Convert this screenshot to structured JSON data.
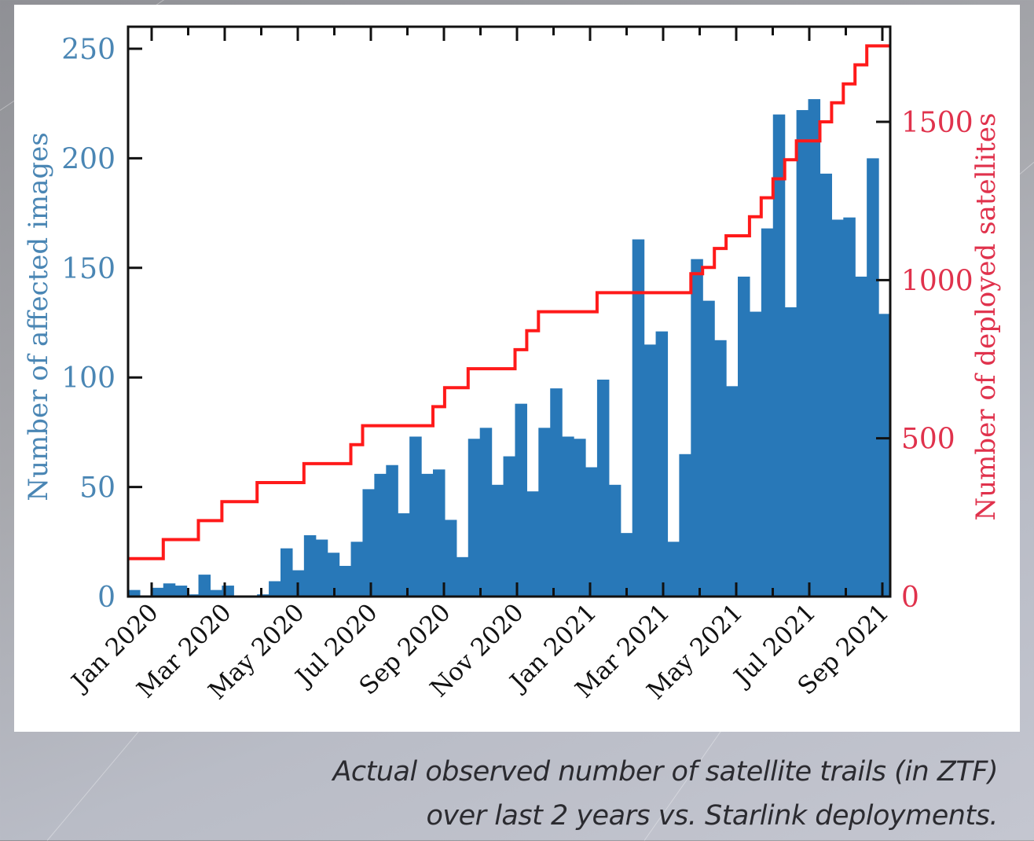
{
  "chart_data": {
    "type": "bar",
    "title": "",
    "xlabel": "",
    "ylabel": "Number of affected images",
    "y2label": "Number of deployed satellites",
    "ylim": [
      0,
      260
    ],
    "y2lim": [
      0,
      1790
    ],
    "yticks": [
      "0",
      "50",
      "100",
      "150",
      "200",
      "250"
    ],
    "y2ticks": [
      "0",
      "500",
      "1000",
      "1500"
    ],
    "xtick_labels": [
      "Jan 2020",
      "Mar 2020",
      "May 2020",
      "Jul 2020",
      "Sep 2020",
      "Nov 2020",
      "Jan 2021",
      "Mar 2021",
      "May 2021",
      "Jul 2021",
      "Sep 2021"
    ],
    "grid": false,
    "series": [
      {
        "name": "Number of affected images",
        "kind": "bar",
        "axis": "left",
        "color": "#2878b8",
        "values": [
          3,
          0,
          4,
          6,
          5,
          1,
          10,
          3,
          5,
          0,
          0,
          1,
          7,
          22,
          12,
          28,
          26,
          20,
          14,
          25,
          49,
          56,
          60,
          38,
          73,
          56,
          58,
          35,
          18,
          72,
          77,
          51,
          64,
          88,
          48,
          77,
          95,
          73,
          72,
          59,
          99,
          51,
          29,
          163,
          115,
          121,
          25,
          65,
          154,
          135,
          117,
          96,
          146,
          130,
          168,
          220,
          132,
          222,
          227,
          193,
          172,
          173,
          146,
          200,
          129
        ]
      },
      {
        "name": "Number of deployed satellites",
        "kind": "step",
        "axis": "right",
        "color": "#ff1a1a",
        "values": [
          120,
          120,
          120,
          180,
          180,
          180,
          240,
          240,
          300,
          300,
          300,
          360,
          360,
          360,
          360,
          420,
          420,
          420,
          420,
          480,
          540,
          540,
          540,
          540,
          540,
          540,
          600,
          660,
          660,
          720,
          720,
          720,
          720,
          780,
          840,
          900,
          900,
          900,
          900,
          900,
          960,
          960,
          960,
          960,
          960,
          960,
          960,
          960,
          1020,
          1040,
          1100,
          1140,
          1140,
          1200,
          1260,
          1320,
          1380,
          1440,
          1440,
          1500,
          1560,
          1620,
          1680,
          1740,
          1740
        ]
      }
    ],
    "caption_lines": [
      "Actual observed number of satellite trails (in ZTF)",
      "over last 2 years vs. Starlink deployments."
    ]
  },
  "colors": {
    "left_axis": "#4a86b4",
    "right_axis": "#e0324c",
    "bars": "#2878b8",
    "step": "#ff1a1a"
  }
}
